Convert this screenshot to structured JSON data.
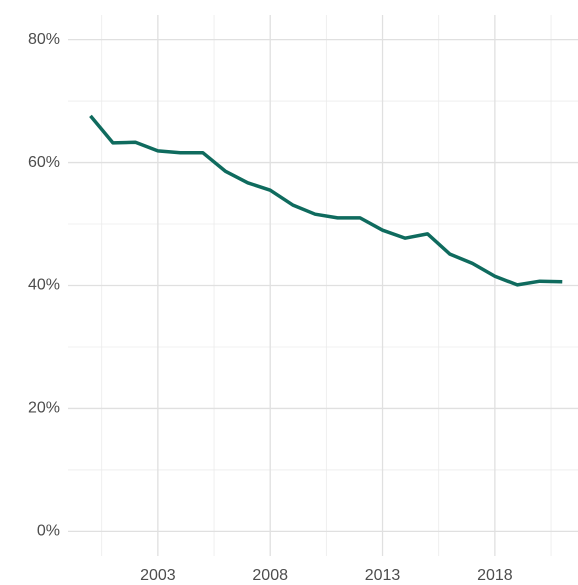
{
  "chart_data": {
    "type": "line",
    "x": [
      2000,
      2001,
      2002,
      2003,
      2004,
      2005,
      2006,
      2007,
      2008,
      2009,
      2010,
      2011,
      2012,
      2013,
      2014,
      2015,
      2016,
      2017,
      2018,
      2019,
      2020,
      2021
    ],
    "series": [
      {
        "color": "#0f6b5e",
        "values": [
          67.6,
          63.2,
          63.3,
          61.9,
          61.6,
          61.6,
          58.6,
          56.7,
          55.5,
          53.1,
          51.6,
          51.0,
          51.0,
          49.0,
          47.7,
          48.4,
          45.1,
          43.6,
          41.5,
          40.1,
          40.7,
          40.6
        ]
      }
    ],
    "xlim": [
      1999,
      2021.7
    ],
    "xticks": [
      2003,
      2008,
      2013,
      2018
    ],
    "ylim": [
      -4,
      84
    ],
    "yticks": [
      {
        "value": 0,
        "label": "0%"
      },
      {
        "value": 20,
        "label": "20%"
      },
      {
        "value": 40,
        "label": "40%"
      },
      {
        "value": 60,
        "label": "60%"
      },
      {
        "value": 80,
        "label": "80%"
      }
    ],
    "grid": true
  }
}
